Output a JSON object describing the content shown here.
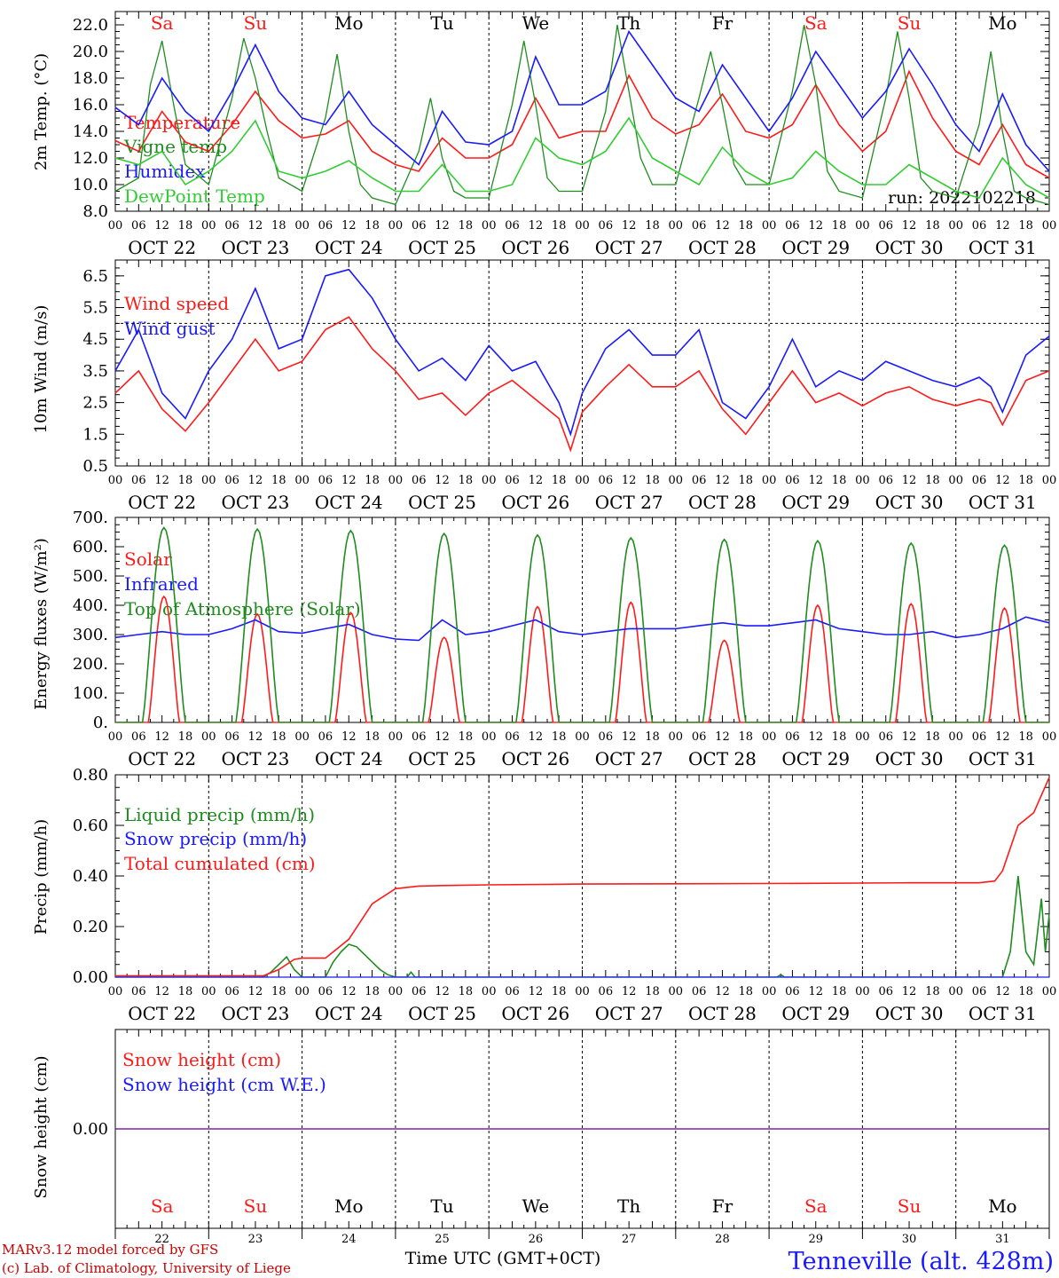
{
  "dates": [
    "OCT 22",
    "OCT 23",
    "OCT 24",
    "OCT 25",
    "OCT 26",
    "OCT 27",
    "OCT 28",
    "OCT 29",
    "OCT 30",
    "OCT 31"
  ],
  "weekdays": [
    "Sa",
    "Su",
    "Mo",
    "Tu",
    "We",
    "Th",
    "Fr",
    "Sa",
    "Su",
    "Mo"
  ],
  "weekend_flags": [
    true,
    true,
    false,
    false,
    false,
    false,
    false,
    true,
    true,
    false
  ],
  "day_numbers": [
    "22",
    "23",
    "24",
    "25",
    "26",
    "27",
    "28",
    "29",
    "30",
    "31"
  ],
  "hour_labels": [
    "00",
    "06",
    "12",
    "18"
  ],
  "final_hour_label": "00",
  "colors": {
    "red": "#ff1a1a",
    "green": "#1e8c1e",
    "blue": "#1a1aff",
    "lightgreen": "#33cc33",
    "weekend": "#ff1a1a",
    "purple": "#7a1aa8"
  },
  "run_label": "run: 2022102218",
  "x_title": "Time UTC (GMT+0CT)",
  "credit_line1": "MARv3.12 model forced by GFS",
  "credit_line2": "(c) Lab. of Climatology, University of Liege",
  "station": "Tenneville (alt. 428m)",
  "chart_data": [
    {
      "type": "line",
      "ylabel": "2m Temp. (°C)",
      "ylim": [
        8.0,
        23.0
      ],
      "yticks": [
        "8.0",
        "10.0",
        "12.0",
        "14.0",
        "16.0",
        "18.0",
        "20.0",
        "22.0"
      ],
      "x_unit": "hours since OCT 22 00 UTC",
      "series": [
        {
          "name": "Temperature",
          "color": "red",
          "x": [
            0,
            6,
            12,
            18,
            24,
            30,
            36,
            42,
            48,
            54,
            60,
            66,
            72,
            78,
            84,
            90,
            96,
            102,
            108,
            114,
            120,
            126,
            132,
            138,
            144,
            150,
            156,
            162,
            168,
            174,
            180,
            186,
            192,
            198,
            204,
            210,
            216,
            222,
            228,
            234,
            240
          ],
          "values": [
            13.3,
            12.5,
            15.5,
            13.2,
            12.5,
            14.5,
            17.0,
            14.8,
            13.5,
            13.8,
            14.8,
            12.5,
            11.5,
            11.0,
            13.5,
            12.0,
            12.0,
            13.0,
            16.5,
            13.5,
            14.0,
            14.0,
            18.2,
            15.0,
            13.8,
            14.5,
            16.8,
            14.0,
            13.5,
            14.5,
            17.5,
            14.5,
            12.5,
            14.0,
            18.5,
            15.0,
            12.5,
            11.5,
            14.5,
            11.5,
            10.5
          ]
        },
        {
          "name": "Vigne temp",
          "color": "green",
          "x": [
            0,
            6,
            9,
            12,
            15,
            18,
            24,
            30,
            33,
            36,
            39,
            42,
            48,
            54,
            57,
            60,
            63,
            66,
            72,
            78,
            81,
            84,
            87,
            90,
            96,
            102,
            105,
            108,
            111,
            114,
            120,
            126,
            129,
            132,
            135,
            138,
            144,
            150,
            153,
            156,
            159,
            162,
            168,
            174,
            177,
            180,
            183,
            186,
            192,
            198,
            201,
            204,
            207,
            210,
            216,
            222,
            225,
            228,
            231,
            234,
            240
          ],
          "values": [
            9.5,
            10.5,
            17.5,
            20.8,
            16.0,
            11.5,
            10.0,
            16.5,
            21.0,
            18.0,
            14.0,
            10.5,
            9.5,
            15.0,
            19.8,
            14.0,
            10.0,
            9.0,
            8.5,
            12.5,
            16.5,
            12.0,
            9.5,
            9.0,
            9.0,
            16.0,
            20.8,
            16.0,
            10.5,
            9.5,
            9.5,
            15.5,
            22.0,
            17.0,
            12.0,
            10.0,
            10.0,
            16.5,
            20.0,
            16.0,
            11.5,
            10.0,
            10.0,
            17.0,
            22.0,
            17.5,
            11.0,
            9.5,
            9.0,
            16.5,
            21.5,
            16.5,
            10.5,
            9.5,
            9.0,
            14.5,
            20.0,
            14.0,
            9.5,
            9.0,
            8.5
          ]
        },
        {
          "name": "Humidex",
          "color": "blue",
          "x": [
            0,
            6,
            12,
            18,
            24,
            30,
            36,
            42,
            48,
            54,
            60,
            66,
            72,
            78,
            84,
            90,
            96,
            102,
            108,
            114,
            120,
            126,
            132,
            138,
            144,
            150,
            156,
            162,
            168,
            174,
            180,
            186,
            192,
            198,
            204,
            210,
            216,
            222,
            228,
            234,
            240
          ],
          "values": [
            15.8,
            14.5,
            18.0,
            15.5,
            14.0,
            17.0,
            20.5,
            17.0,
            15.0,
            14.5,
            17.0,
            14.5,
            13.0,
            11.5,
            15.5,
            13.2,
            13.0,
            14.0,
            19.6,
            16.0,
            16.0,
            17.0,
            21.5,
            19.0,
            16.5,
            15.5,
            19.0,
            16.5,
            14.0,
            16.5,
            20.0,
            17.5,
            15.0,
            17.0,
            20.2,
            17.5,
            14.5,
            12.5,
            16.8,
            13.0,
            11.0
          ]
        },
        {
          "name": "DewPoint Temp",
          "color": "lightgreen",
          "x": [
            0,
            6,
            12,
            18,
            24,
            30,
            36,
            42,
            48,
            54,
            60,
            66,
            72,
            78,
            84,
            90,
            96,
            102,
            108,
            114,
            120,
            126,
            132,
            138,
            144,
            150,
            156,
            162,
            168,
            174,
            180,
            186,
            192,
            198,
            204,
            210,
            216,
            222,
            228,
            234,
            240
          ],
          "values": [
            12.0,
            11.5,
            12.5,
            10.0,
            11.0,
            12.5,
            14.8,
            11.0,
            10.5,
            11.0,
            11.8,
            10.5,
            9.5,
            9.5,
            11.5,
            9.5,
            9.5,
            10.0,
            13.5,
            12.0,
            11.5,
            12.5,
            15.0,
            12.0,
            11.0,
            10.0,
            12.8,
            11.0,
            10.0,
            10.5,
            12.5,
            11.0,
            10.0,
            10.0,
            11.5,
            10.5,
            9.5,
            9.0,
            12.0,
            10.0,
            9.0
          ]
        }
      ],
      "legend": [
        "Temperature",
        "Vigne temp",
        "Humidex",
        "DewPoint Temp"
      ]
    },
    {
      "type": "line",
      "ylabel": "10m Wind (m/s)",
      "ylim": [
        0.5,
        7.0
      ],
      "yticks": [
        "0.5",
        "1.5",
        "2.5",
        "3.5",
        "4.5",
        "5.5",
        "6.5"
      ],
      "reference_line": 5.0,
      "x_unit": "hours since OCT 22 00 UTC",
      "series": [
        {
          "name": "Wind speed",
          "color": "red",
          "x": [
            0,
            6,
            12,
            18,
            24,
            30,
            36,
            42,
            48,
            54,
            60,
            66,
            72,
            78,
            84,
            90,
            96,
            102,
            108,
            114,
            117,
            120,
            126,
            132,
            138,
            144,
            150,
            156,
            162,
            168,
            174,
            180,
            186,
            192,
            198,
            204,
            210,
            216,
            222,
            225,
            228,
            234,
            240
          ],
          "values": [
            2.8,
            3.5,
            2.3,
            1.6,
            2.5,
            3.5,
            4.5,
            3.5,
            3.8,
            4.8,
            5.2,
            4.2,
            3.5,
            2.6,
            2.8,
            2.1,
            2.8,
            3.2,
            2.6,
            2.0,
            1.0,
            2.2,
            3.0,
            3.7,
            3.0,
            3.0,
            3.5,
            2.3,
            1.5,
            2.5,
            3.5,
            2.5,
            2.8,
            2.4,
            2.8,
            3.0,
            2.6,
            2.4,
            2.6,
            2.5,
            1.8,
            3.2,
            3.5
          ]
        },
        {
          "name": "Wind gust",
          "color": "blue",
          "x": [
            0,
            6,
            12,
            18,
            24,
            30,
            36,
            42,
            48,
            54,
            60,
            66,
            72,
            78,
            84,
            90,
            96,
            102,
            108,
            114,
            117,
            120,
            126,
            132,
            138,
            144,
            150,
            156,
            162,
            168,
            174,
            180,
            186,
            192,
            198,
            204,
            210,
            216,
            222,
            225,
            228,
            234,
            240
          ],
          "values": [
            3.5,
            4.8,
            2.8,
            2.0,
            3.5,
            4.5,
            6.1,
            4.2,
            4.5,
            6.5,
            6.7,
            5.8,
            4.5,
            3.5,
            3.9,
            3.2,
            4.3,
            3.5,
            3.8,
            2.5,
            1.5,
            2.8,
            4.2,
            4.8,
            4.0,
            4.0,
            4.8,
            2.5,
            2.0,
            3.0,
            4.5,
            3.0,
            3.5,
            3.2,
            3.8,
            3.5,
            3.2,
            3.0,
            3.3,
            3.0,
            2.2,
            4.0,
            4.6
          ]
        }
      ],
      "legend": [
        "Wind speed",
        "Wind gust"
      ]
    },
    {
      "type": "line",
      "ylabel": "Energy fluxes (W/m²)",
      "ylim": [
        0,
        700
      ],
      "yticks": [
        "0.",
        "100.",
        "200.",
        "300.",
        "400.",
        "500.",
        "600.",
        "700."
      ],
      "x_unit": "hours since OCT 22 00 UTC",
      "series": [
        {
          "name": "Solar",
          "color": "red",
          "day_peaks": [
            430,
            370,
            375,
            290,
            395,
            410,
            280,
            400,
            405,
            390
          ],
          "start": 8.5,
          "end": 16.5
        },
        {
          "name": "Infrared",
          "color": "blue",
          "x": [
            0,
            6,
            12,
            18,
            24,
            30,
            36,
            42,
            48,
            54,
            60,
            66,
            72,
            78,
            84,
            90,
            96,
            102,
            108,
            114,
            120,
            126,
            132,
            138,
            144,
            150,
            156,
            162,
            168,
            174,
            180,
            186,
            192,
            198,
            204,
            210,
            216,
            222,
            228,
            234,
            240
          ],
          "values": [
            290,
            300,
            310,
            300,
            300,
            320,
            350,
            310,
            305,
            320,
            335,
            300,
            285,
            280,
            350,
            300,
            310,
            330,
            350,
            310,
            300,
            310,
            320,
            320,
            320,
            330,
            340,
            330,
            330,
            340,
            350,
            320,
            310,
            300,
            300,
            310,
            290,
            300,
            320,
            360,
            340
          ]
        },
        {
          "name": "Top of Atmosphere (Solar)",
          "color": "green",
          "day_peaks": [
            665,
            660,
            655,
            645,
            640,
            630,
            625,
            620,
            612,
            605
          ],
          "start": 7.0,
          "end": 18.0
        }
      ],
      "legend": [
        "Solar",
        "Infrared",
        "Top of Atmosphere (Solar)"
      ]
    },
    {
      "type": "line",
      "ylabel": "Precip (mm/h)",
      "ylim": [
        0.0,
        0.8
      ],
      "yticks": [
        "0.00",
        "0.20",
        "0.40",
        "0.60",
        "0.80"
      ],
      "x_unit": "hours since OCT 22 00 UTC",
      "series": [
        {
          "name": "Liquid precip (mm/h)",
          "color": "green",
          "x": [
            0,
            38,
            40,
            42,
            44,
            46,
            48,
            50,
            54,
            56,
            58,
            60,
            62,
            64,
            66,
            68,
            70,
            72,
            75,
            76,
            77,
            80,
            170,
            171,
            172,
            228,
            230,
            232,
            234,
            236,
            238,
            239,
            240
          ],
          "values": [
            0,
            0,
            0.02,
            0.05,
            0.08,
            0.03,
            0,
            0,
            0,
            0.06,
            0.1,
            0.13,
            0.12,
            0.09,
            0.06,
            0.03,
            0.01,
            0,
            0,
            0.02,
            0,
            0,
            0,
            0.01,
            0,
            0,
            0.1,
            0.4,
            0.1,
            0.05,
            0.31,
            0.1,
            0.25
          ]
        },
        {
          "name": "Snow precip (mm/h)",
          "color": "blue",
          "x": [
            0,
            240
          ],
          "values": [
            0,
            0
          ]
        },
        {
          "name": "Total cumulated (cm)",
          "color": "red",
          "x": [
            0,
            38,
            42,
            46,
            48,
            54,
            60,
            66,
            72,
            78,
            84,
            96,
            120,
            168,
            204,
            216,
            222,
            226,
            228,
            232,
            236,
            240
          ],
          "values": [
            0.005,
            0.005,
            0.03,
            0.07,
            0.075,
            0.075,
            0.15,
            0.29,
            0.35,
            0.36,
            0.362,
            0.365,
            0.368,
            0.37,
            0.373,
            0.373,
            0.373,
            0.38,
            0.42,
            0.6,
            0.65,
            0.79
          ]
        }
      ],
      "legend": [
        "Liquid precip (mm/h)",
        "Snow precip (mm/h)",
        "Total cumulated (cm)"
      ]
    },
    {
      "type": "line",
      "ylabel": "Snow height (cm)",
      "yticks": [
        "0.00"
      ],
      "x_unit": "hours since OCT 22 00 UTC",
      "series": [
        {
          "name": "Snow height (cm)",
          "color": "red",
          "x": [
            0,
            240
          ],
          "values": [
            0,
            0
          ]
        },
        {
          "name": "Snow height (cm W.E.)",
          "color": "blue",
          "x": [
            0,
            240
          ],
          "values": [
            0,
            0
          ]
        }
      ],
      "legend": [
        "Snow height (cm)",
        "Snow height (cm W.E.)"
      ]
    }
  ]
}
